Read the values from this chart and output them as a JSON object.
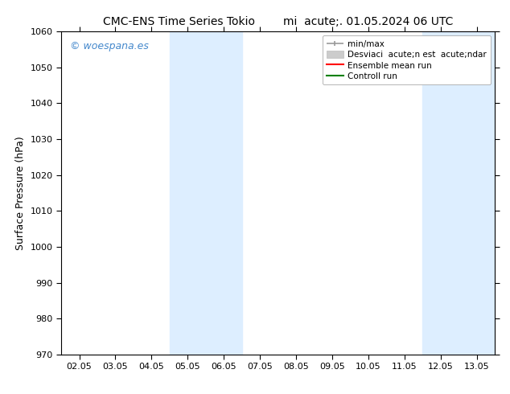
{
  "title_left": "CMC-ENS Time Series Tokio",
  "title_right": "mi  acute;. 01.05.2024 06 UTC",
  "ylabel": "Surface Pressure (hPa)",
  "ylim": [
    970,
    1060
  ],
  "yticks": [
    970,
    980,
    990,
    1000,
    1010,
    1020,
    1030,
    1040,
    1050,
    1060
  ],
  "xtick_labels": [
    "02.05",
    "03.05",
    "04.05",
    "05.05",
    "06.05",
    "07.05",
    "08.05",
    "09.05",
    "10.05",
    "11.05",
    "12.05",
    "13.05"
  ],
  "xtick_values": [
    0,
    1,
    2,
    3,
    4,
    5,
    6,
    7,
    8,
    9,
    10,
    11
  ],
  "xlim": [
    -0.5,
    11.5
  ],
  "shaded_regions": [
    {
      "xmin": 2.5,
      "xmax": 4.5,
      "color": "#ddeeff"
    },
    {
      "xmin": 9.5,
      "xmax": 11.5,
      "color": "#ddeeff"
    }
  ],
  "watermark_text": "© woespana.es",
  "watermark_color": "#4488cc",
  "bg_color": "#ffffff",
  "plot_bg_color": "#ffffff",
  "legend_fontsize": 7.5,
  "tick_fontsize": 8,
  "ylabel_fontsize": 9,
  "title_fontsize": 10
}
